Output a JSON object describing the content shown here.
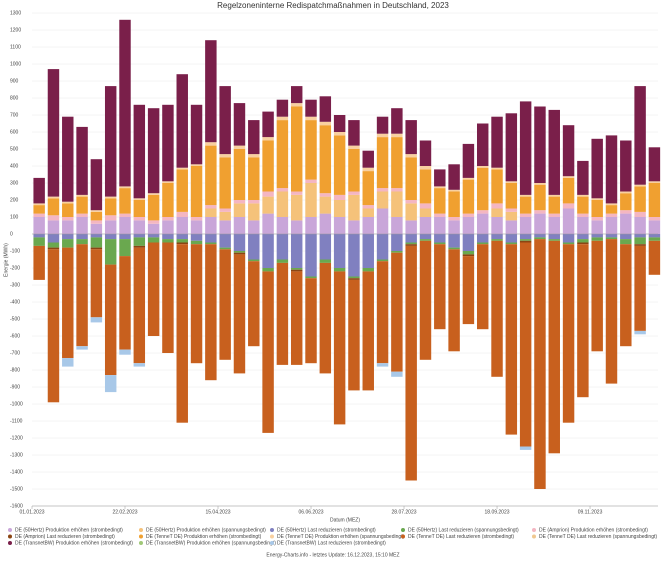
{
  "chart_data": {
    "type": "bar",
    "title": "Regelzoneninterne Redispatchmaßnahmen in Deutschland, 2023",
    "ylabel": "Energie (MWh)",
    "xlabel": "Datum (MEZ)",
    "footer": "Energy-Charts.info - letztes Update: 16.12.2023, 15:10 MEZ",
    "stacked": true,
    "grid": true,
    "legend": "bottom",
    "xlim": [
      0,
      350
    ],
    "xticks": [
      {
        "value": 0,
        "label": "01.01.2023"
      },
      {
        "value": 52,
        "label": "22.02.2023"
      },
      {
        "value": 104,
        "label": "15.04.2023"
      },
      {
        "value": 156,
        "label": "06.06.2023"
      },
      {
        "value": 208,
        "label": "28.07.2023"
      },
      {
        "value": 260,
        "label": "18.09.2023"
      },
      {
        "value": 312,
        "label": "09.11.2023"
      }
    ],
    "ylim": [
      -1600,
      1300
    ],
    "yticks": [
      -1600,
      -1500,
      -1400,
      -1300,
      -1200,
      -1100,
      -1000,
      -900,
      -800,
      -700,
      -600,
      -500,
      -400,
      -300,
      -200,
      -100,
      0,
      100,
      200,
      300,
      400,
      500,
      600,
      700,
      800,
      900,
      1000,
      1100,
      1200,
      1300
    ],
    "x": [
      0,
      8,
      16,
      24,
      32,
      40,
      48,
      56,
      64,
      72,
      80,
      88,
      96,
      104,
      112,
      120,
      128,
      136,
      144,
      152,
      160,
      168,
      176,
      184,
      192,
      200,
      208,
      216,
      224,
      232,
      240,
      248,
      256,
      264,
      272,
      280,
      288,
      296,
      304,
      312,
      320,
      328,
      336,
      344
    ],
    "series": [
      {
        "name": "DE (50Hertz) Produktion erhöhen (strombedingt)",
        "color": "#c9a6d9",
        "values": [
          100,
          80,
          80,
          100,
          60,
          80,
          100,
          80,
          60,
          80,
          100,
          80,
          100,
          80,
          100,
          80,
          120,
          100,
          80,
          100,
          120,
          100,
          80,
          100,
          150,
          100,
          80,
          100,
          100,
          80,
          100,
          120,
          100,
          80,
          100,
          120,
          100,
          150,
          100,
          80,
          100,
          120,
          100,
          80
        ]
      },
      {
        "name": "DE (50Hertz) Produktion erhöhen (spannungsbedingt)",
        "color": "#f5c27a",
        "values": [
          0,
          0,
          0,
          0,
          0,
          0,
          0,
          0,
          0,
          0,
          0,
          0,
          50,
          50,
          80,
          100,
          100,
          150,
          150,
          200,
          100,
          100,
          150,
          50,
          100,
          150,
          100,
          50,
          0,
          0,
          0,
          0,
          50,
          50,
          0,
          0,
          0,
          0,
          0,
          0,
          0,
          0,
          0,
          0
        ]
      },
      {
        "name": "DE (50Hertz) Last reduzieren (strombedingt)",
        "color": "#8080c0",
        "values": [
          -20,
          -50,
          -30,
          -30,
          -20,
          -30,
          -30,
          -20,
          -20,
          -30,
          -30,
          -40,
          -50,
          -80,
          -100,
          -150,
          -200,
          -150,
          -200,
          -250,
          -150,
          -200,
          -250,
          -200,
          -150,
          -100,
          -50,
          -30,
          -50,
          -80,
          -100,
          -50,
          -30,
          -50,
          -30,
          -20,
          -30,
          -50,
          -30,
          -20,
          -20,
          -30,
          -20,
          -20
        ]
      },
      {
        "name": "DE (50Hertz) Last reduzieren (spannungsbedingt)",
        "color": "#6aa84f",
        "values": [
          -50,
          -30,
          -50,
          -30,
          -60,
          -150,
          -100,
          -50,
          -30,
          -20,
          -20,
          -20,
          -10,
          -10,
          -10,
          -10,
          -20,
          -20,
          -10,
          -10,
          -20,
          -20,
          -10,
          -20,
          -10,
          -10,
          -10,
          -10,
          -10,
          -10,
          -20,
          -10,
          -10,
          -10,
          -10,
          -10,
          -10,
          -10,
          -20,
          -20,
          -10,
          -30,
          -40,
          -20
        ]
      },
      {
        "name": "DE (Amprion) Produktion erhöhen (strombedingt)",
        "color": "#f4b6c2",
        "values": [
          20,
          30,
          20,
          20,
          20,
          30,
          20,
          20,
          20,
          20,
          30,
          20,
          20,
          20,
          20,
          20,
          30,
          20,
          20,
          20,
          20,
          30,
          20,
          20,
          20,
          20,
          20,
          30,
          20,
          20,
          20,
          20,
          30,
          20,
          20,
          20,
          20,
          30,
          20,
          20,
          20,
          20,
          30,
          20
        ]
      },
      {
        "name": "DE (Amprion) Last reduzieren (strombedingt)",
        "color": "#8b4513",
        "values": [
          0,
          -10,
          0,
          0,
          -10,
          0,
          0,
          -10,
          0,
          0,
          -10,
          0,
          0,
          0,
          -10,
          0,
          0,
          0,
          -10,
          0,
          0,
          0,
          -10,
          0,
          0,
          0,
          -10,
          0,
          0,
          0,
          -10,
          0,
          0,
          0,
          -10,
          0,
          0,
          0,
          -10,
          0,
          0,
          0,
          -10,
          0
        ]
      },
      {
        "name": "DE (TenneT DE) Produktion erhöhen (strombedingt)",
        "color": "#f0a030",
        "values": [
          50,
          100,
          80,
          100,
          50,
          100,
          150,
          100,
          150,
          200,
          250,
          300,
          350,
          300,
          300,
          250,
          300,
          400,
          500,
          350,
          400,
          350,
          250,
          200,
          300,
          300,
          250,
          200,
          150,
          150,
          200,
          250,
          200,
          150,
          100,
          150,
          100,
          150,
          100,
          100,
          50,
          100,
          150,
          200
        ]
      },
      {
        "name": "DE (TenneT DE) Produktion erhöhen (spannungsbedingt)",
        "color": "#f8d0a0",
        "values": [
          10,
          10,
          10,
          10,
          10,
          10,
          10,
          10,
          10,
          10,
          10,
          10,
          20,
          20,
          20,
          20,
          20,
          20,
          20,
          20,
          20,
          20,
          20,
          20,
          20,
          20,
          20,
          20,
          10,
          10,
          10,
          10,
          10,
          10,
          10,
          10,
          10,
          10,
          10,
          10,
          10,
          10,
          10,
          10
        ]
      },
      {
        "name": "DE (TenneT DE) Last reduzieren (strombedingt)",
        "color": "#c8601e",
        "values": [
          -200,
          -900,
          -650,
          -600,
          -400,
          -650,
          -550,
          -680,
          -550,
          -650,
          -1050,
          -700,
          -800,
          -650,
          -700,
          -500,
          -950,
          -600,
          -550,
          -500,
          -650,
          -900,
          -650,
          -700,
          -600,
          -700,
          -1380,
          -700,
          -500,
          -600,
          -400,
          -500,
          -800,
          -1120,
          -1200,
          -1470,
          -1250,
          -1050,
          -900,
          -650,
          -850,
          -600,
          -500,
          -200
        ]
      },
      {
        "name": "DE (TenneT DE) Last reduzieren (spannungsbedingt)",
        "color": "#f0c890",
        "values": [
          0,
          0,
          0,
          0,
          0,
          0,
          0,
          0,
          0,
          0,
          0,
          0,
          0,
          0,
          0,
          0,
          0,
          0,
          0,
          0,
          0,
          0,
          0,
          0,
          0,
          0,
          0,
          0,
          0,
          0,
          0,
          0,
          0,
          0,
          0,
          0,
          0,
          0,
          0,
          0,
          0,
          0,
          0,
          0
        ]
      },
      {
        "name": "DE (TransnetBW) Produktion erhöhen (strombedingt)",
        "color": "#7a1f4a",
        "values": [
          150,
          750,
          500,
          400,
          300,
          650,
          980,
          550,
          500,
          450,
          550,
          350,
          600,
          400,
          250,
          200,
          150,
          100,
          100,
          100,
          150,
          100,
          150,
          100,
          100,
          150,
          200,
          150,
          100,
          150,
          200,
          250,
          300,
          400,
          550,
          450,
          500,
          300,
          200,
          350,
          400,
          300,
          580,
          200
        ]
      },
      {
        "name": "DE (TransnetBW) Produktion erhöhen (spannungsbedingt)",
        "color": "#a0c878",
        "values": [
          0,
          0,
          0,
          0,
          0,
          0,
          0,
          0,
          0,
          0,
          0,
          0,
          0,
          0,
          0,
          0,
          0,
          0,
          0,
          0,
          0,
          0,
          0,
          0,
          0,
          0,
          0,
          0,
          0,
          0,
          0,
          0,
          0,
          0,
          0,
          0,
          0,
          0,
          0,
          0,
          0,
          0,
          0,
          0
        ]
      },
      {
        "name": "DE (TransnetBW) Last reduzieren (strombedingt)",
        "color": "#a8c8e8",
        "values": [
          0,
          0,
          -50,
          -20,
          -30,
          -100,
          -30,
          -20,
          0,
          0,
          0,
          0,
          0,
          0,
          0,
          0,
          0,
          0,
          0,
          0,
          0,
          0,
          0,
          0,
          -20,
          -30,
          0,
          0,
          0,
          0,
          0,
          0,
          0,
          0,
          -20,
          0,
          0,
          0,
          0,
          0,
          0,
          0,
          -20,
          0
        ]
      }
    ]
  }
}
